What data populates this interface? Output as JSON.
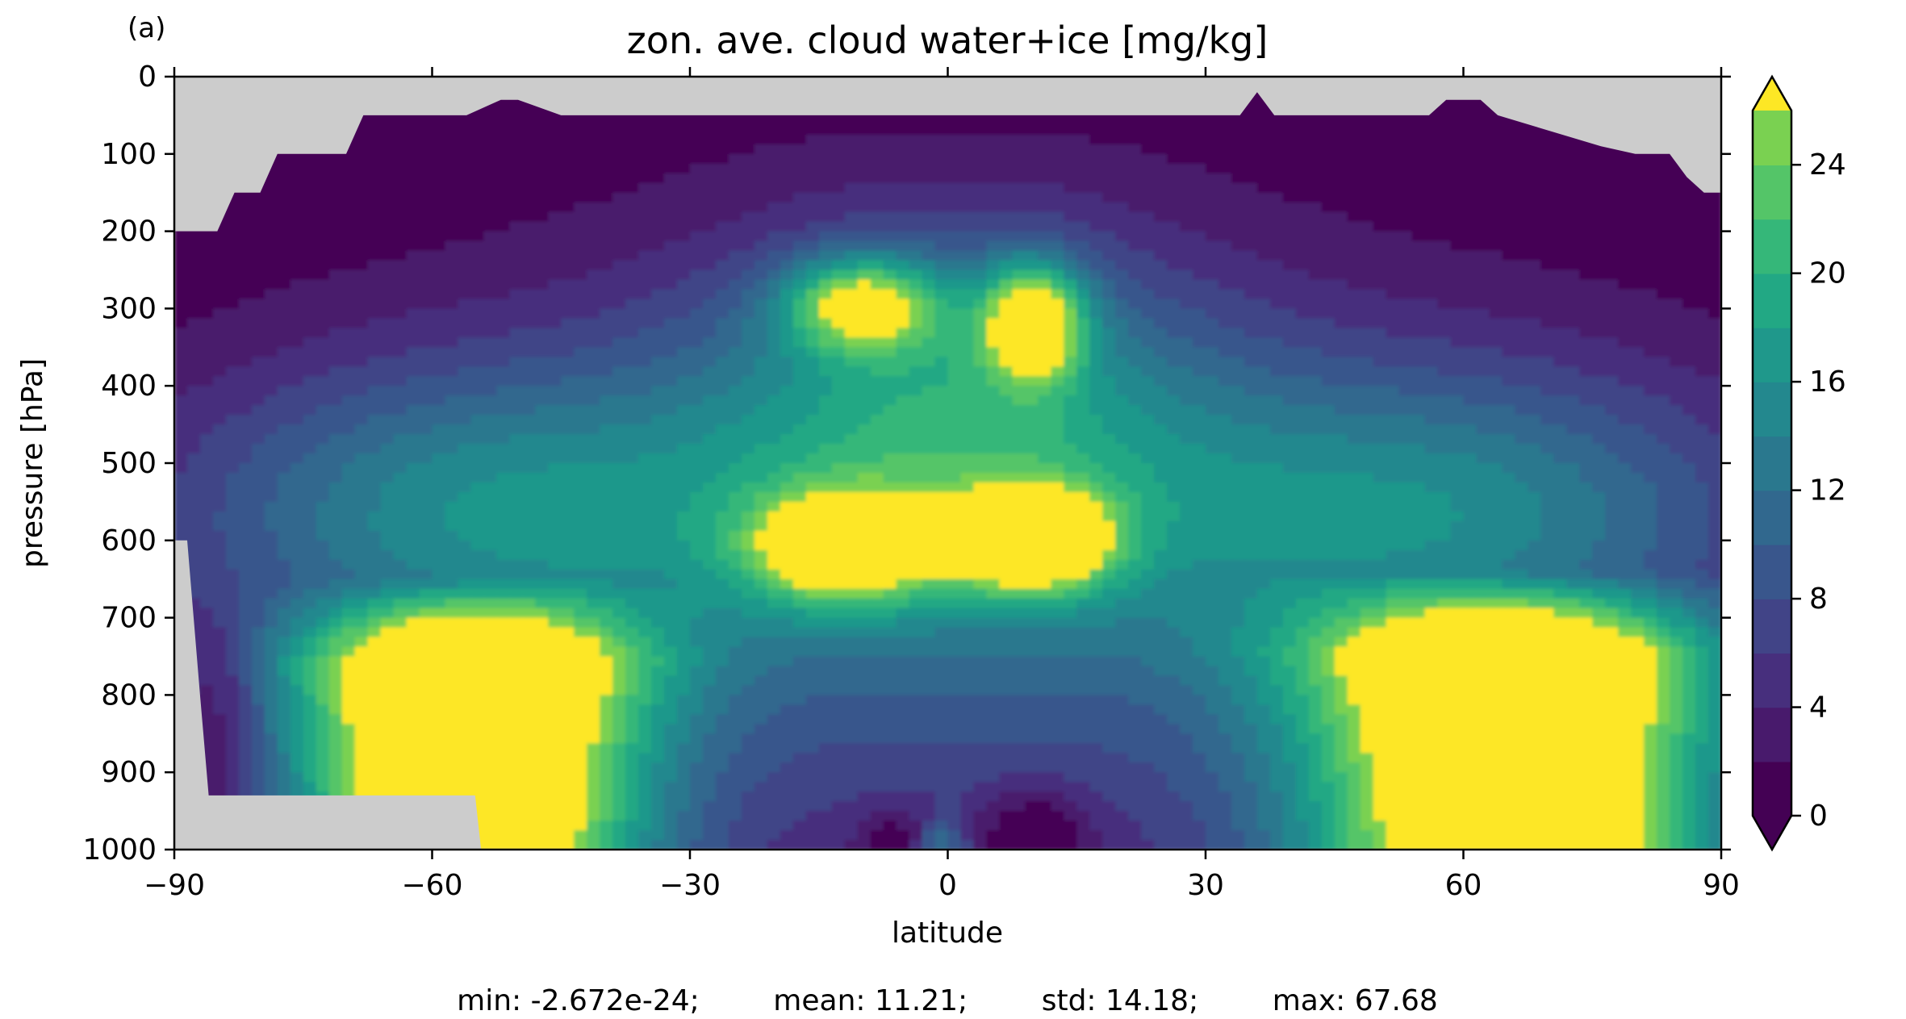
{
  "panel_label": "(a)",
  "stats_line": "min: -2.672e-24;        mean: 11.21;        std: 14.18;        max: 67.68",
  "chart_data": {
    "type": "heatmap",
    "title": "zon. ave. cloud water+ice [mg/kg]",
    "xlabel": "latitude",
    "ylabel": "pressure [hPa]",
    "xlim": [
      -90,
      90
    ],
    "ylim": [
      1000,
      0
    ],
    "xticks": [
      -90,
      -60,
      -30,
      0,
      30,
      60,
      90
    ],
    "xtick_labels": [
      "−90",
      "−60",
      "−30",
      "0",
      "30",
      "60",
      "90"
    ],
    "yticks": [
      0,
      100,
      200,
      300,
      400,
      500,
      600,
      700,
      800,
      900,
      1000
    ],
    "ytick_labels": [
      "0",
      "100",
      "200",
      "300",
      "400",
      "500",
      "600",
      "700",
      "800",
      "900",
      "1000"
    ],
    "colorbar": {
      "levels": [
        0,
        2,
        4,
        6,
        8,
        10,
        12,
        14,
        16,
        18,
        20,
        22,
        24,
        26
      ],
      "ticks": [
        0,
        4,
        8,
        12,
        16,
        20,
        24
      ],
      "extend": "both",
      "colors": [
        "#440154",
        "#481a6c",
        "#472f7d",
        "#414487",
        "#39568c",
        "#31688e",
        "#2a788e",
        "#23888e",
        "#1f988b",
        "#22a884",
        "#35b779",
        "#54c568",
        "#7ad151",
        "#a5db36",
        "#d2e21b",
        "#fde725"
      ],
      "under_color": "#440154",
      "over_color": "#fde725"
    },
    "missing_color": "#cccccc",
    "grid": false,
    "stats": {
      "min": -2.672e-24,
      "mean": 11.21,
      "std": 14.18,
      "max": 67.68
    }
  }
}
